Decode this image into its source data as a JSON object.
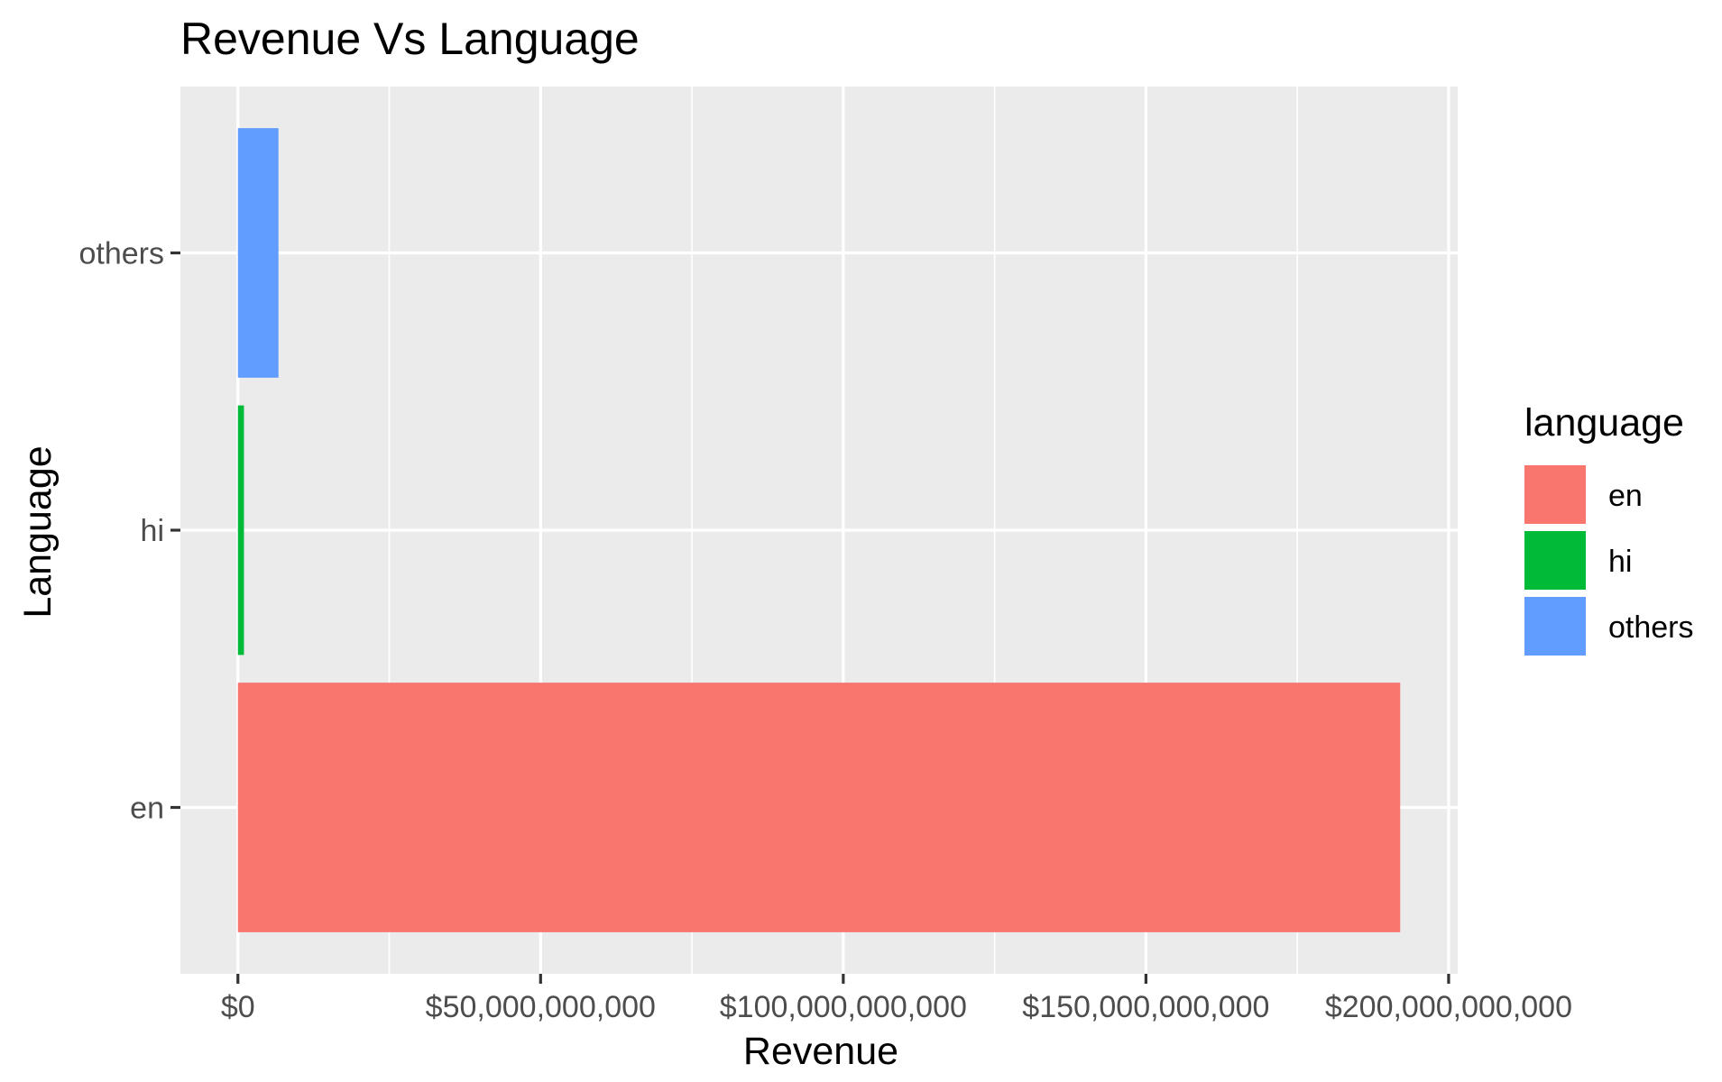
{
  "chart_data": {
    "type": "bar",
    "orientation": "horizontal",
    "title": "Revenue Vs Language",
    "xlabel": "Revenue",
    "ylabel": "Language",
    "categories": [
      "en",
      "hi",
      "others"
    ],
    "values": [
      192000000000,
      1000000000,
      6700000000
    ],
    "colors": [
      "#F8766D",
      "#00BA38",
      "#619CFF"
    ],
    "xlim": [
      -9500000000,
      201500000000
    ],
    "xticks": [
      0,
      50000000000,
      100000000000,
      150000000000,
      200000000000
    ],
    "xtick_labels": [
      "$0",
      "$50,000,000,000",
      "$100,000,000,000",
      "$150,000,000,000",
      "$200,000,000,000"
    ],
    "grid": true,
    "legend": {
      "title": "language",
      "position": "right",
      "entries": [
        "en",
        "hi",
        "others"
      ]
    }
  }
}
